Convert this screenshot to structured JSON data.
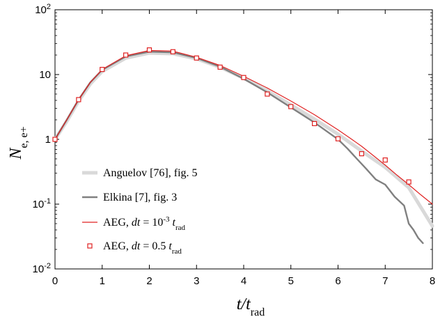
{
  "chart_data": {
    "type": "line",
    "xlabel": {
      "main": "t/t",
      "sub": "rad"
    },
    "ylabel": {
      "main": "N",
      "sub": "e, e+"
    },
    "xlim": [
      0,
      8
    ],
    "ylim": [
      0.01,
      100
    ],
    "yscale": "log",
    "grid": false,
    "legend_position": "lower-left",
    "x_ticks": [
      "0",
      "1",
      "2",
      "3",
      "4",
      "5",
      "6",
      "7",
      "8"
    ],
    "y_ticks": [
      {
        "value": 0.01,
        "base": "10",
        "exp": "-2"
      },
      {
        "value": 0.1,
        "base": "10",
        "exp": "-1"
      },
      {
        "value": 1,
        "base": "1",
        "exp": ""
      },
      {
        "value": 10,
        "base": "10",
        "exp": ""
      },
      {
        "value": 100,
        "base": "10",
        "exp": "2"
      }
    ],
    "series": [
      {
        "name": "Anguelov [76], fig. 5",
        "legend": {
          "main": "Anguelov [76], fig. 5"
        },
        "style": "thick-line",
        "color": "#d9d9d9",
        "x": [
          0,
          0.25,
          0.5,
          0.75,
          1.0,
          1.5,
          2.0,
          2.5,
          3.0,
          3.5,
          4.0,
          4.5,
          5.0,
          5.5,
          6.0,
          6.5,
          7.0,
          7.5,
          8.0
        ],
        "y": [
          1.0,
          1.9,
          3.9,
          7.2,
          11.2,
          18.0,
          21.5,
          21.0,
          17.5,
          13.0,
          8.8,
          5.6,
          3.4,
          2.05,
          1.2,
          0.66,
          0.37,
          0.18,
          0.046
        ]
      },
      {
        "name": "Elkina [7], fig. 3",
        "legend": {
          "main": "Elkina [7], fig. 3"
        },
        "style": "line",
        "color": "#808080",
        "x": [
          0,
          0.25,
          0.5,
          0.75,
          1.0,
          1.5,
          2.0,
          2.5,
          3.0,
          3.5,
          4.0,
          4.5,
          5.0,
          5.5,
          6.0,
          6.2,
          6.4,
          6.6,
          6.8,
          7.0,
          7.2,
          7.4,
          7.5,
          7.6,
          7.7,
          7.8
        ],
        "y": [
          1.0,
          2.0,
          4.1,
          7.6,
          11.8,
          19.0,
          22.5,
          22.0,
          18.0,
          13.2,
          8.6,
          5.3,
          3.1,
          1.82,
          1.0,
          0.72,
          0.5,
          0.35,
          0.24,
          0.2,
          0.13,
          0.095,
          0.05,
          0.04,
          0.03,
          0.025
        ]
      },
      {
        "name": "AEG, dt = 10-3 trad",
        "legend": {
          "pre": "AEG, ",
          "var": "dt",
          "mid": " = 10",
          "sup": "-3",
          "post": " ",
          "var2": "t",
          "sub": "rad"
        },
        "style": "thin-line",
        "color": "#e02020",
        "x": [
          0,
          0.25,
          0.5,
          0.75,
          1.0,
          1.5,
          2.0,
          2.5,
          3.0,
          3.5,
          4.0,
          4.5,
          5.0,
          5.5,
          6.0,
          6.25,
          6.5,
          6.75,
          7.0,
          7.25,
          7.5,
          7.75,
          8.0
        ],
        "y": [
          1.0,
          2.0,
          4.1,
          7.6,
          12.0,
          19.5,
          23.5,
          23.0,
          18.5,
          13.8,
          9.4,
          6.2,
          3.9,
          2.4,
          1.4,
          1.05,
          0.78,
          0.56,
          0.4,
          0.28,
          0.2,
          0.14,
          0.1
        ]
      },
      {
        "name": "AEG, dt = 0.5 trad",
        "legend": {
          "pre": "AEG, ",
          "var": "dt",
          "mid": " = 0.5 ",
          "sup": "",
          "post": "",
          "var2": "t",
          "sub": "rad"
        },
        "style": "markers",
        "color": "#e02020",
        "x": [
          0,
          0.5,
          1.0,
          1.5,
          2.0,
          2.5,
          3.0,
          3.5,
          4.0,
          4.5,
          5.0,
          5.5,
          6.0,
          6.5,
          7.0,
          7.5
        ],
        "y": [
          1.0,
          4.1,
          12.0,
          20.0,
          24.0,
          22.5,
          18.0,
          13.0,
          9.0,
          5.0,
          3.2,
          1.75,
          1.02,
          0.6,
          0.48,
          0.22
        ]
      }
    ]
  }
}
